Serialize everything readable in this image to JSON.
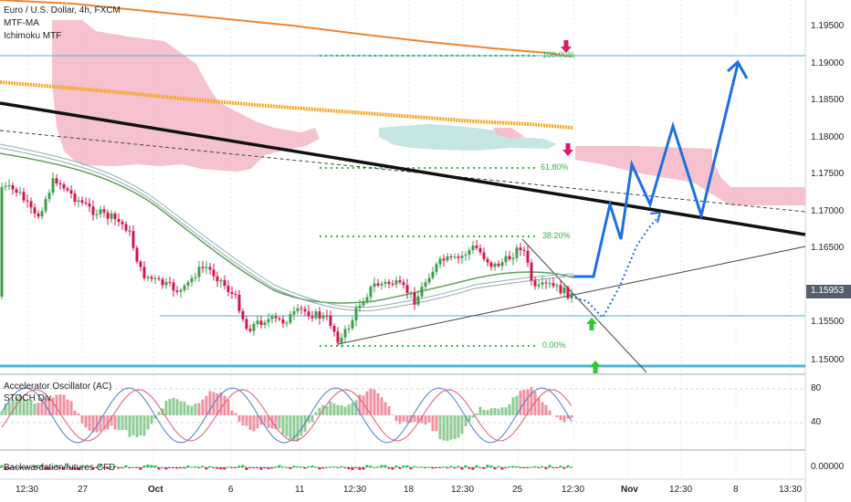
{
  "legend": {
    "symbol": "Euro / U.S. Dollar, 4h, FXCM",
    "indicator_1": "MTF-MA",
    "indicator_2": "Ichimoku MTF"
  },
  "price_axis": {
    "ticks": [
      "1.19500",
      "1.19000",
      "1.18500",
      "1.18000",
      "1.17500",
      "1.17000",
      "1.16500",
      "1.16000",
      "1.15500",
      "1.15000"
    ],
    "current_price": "1.15953"
  },
  "fib_levels": {
    "level_100": "100.00%",
    "level_618": "61.80%",
    "level_382": "38.20%",
    "level_0": "0.00%"
  },
  "oscillator_pane": {
    "label_1": "Accelerator Oscillator (AC)",
    "label_2": "STOCH Div",
    "ticks": [
      "80",
      "40"
    ]
  },
  "futures_pane": {
    "label": "Backwardation/futures CFD",
    "tick": "0.00000"
  },
  "time_axis": {
    "ticks": [
      "12:30",
      "27",
      "Oct",
      "6",
      "11",
      "12:30",
      "18",
      "12:30",
      "25",
      "12:30",
      "Nov",
      "12:30",
      "8",
      "13:30"
    ]
  },
  "colors": {
    "projection": "#1e6fe0",
    "trendline": "#000000",
    "bull_candle": "#3f9e4a",
    "bear_candle": "#d0174e",
    "ichimoku_cloud": "#f5b7c8",
    "mtf_ma_orange": "#f0832e",
    "mtf_ma_yellow": "#f5a623",
    "horizontal_level": "#45b6d8"
  },
  "markers": {
    "down_arrow_top": "arrow-down",
    "down_arrow_mid": "arrow-down",
    "up_arrow_mid": "arrow-up",
    "up_arrow_bottom": "arrow-up"
  }
}
